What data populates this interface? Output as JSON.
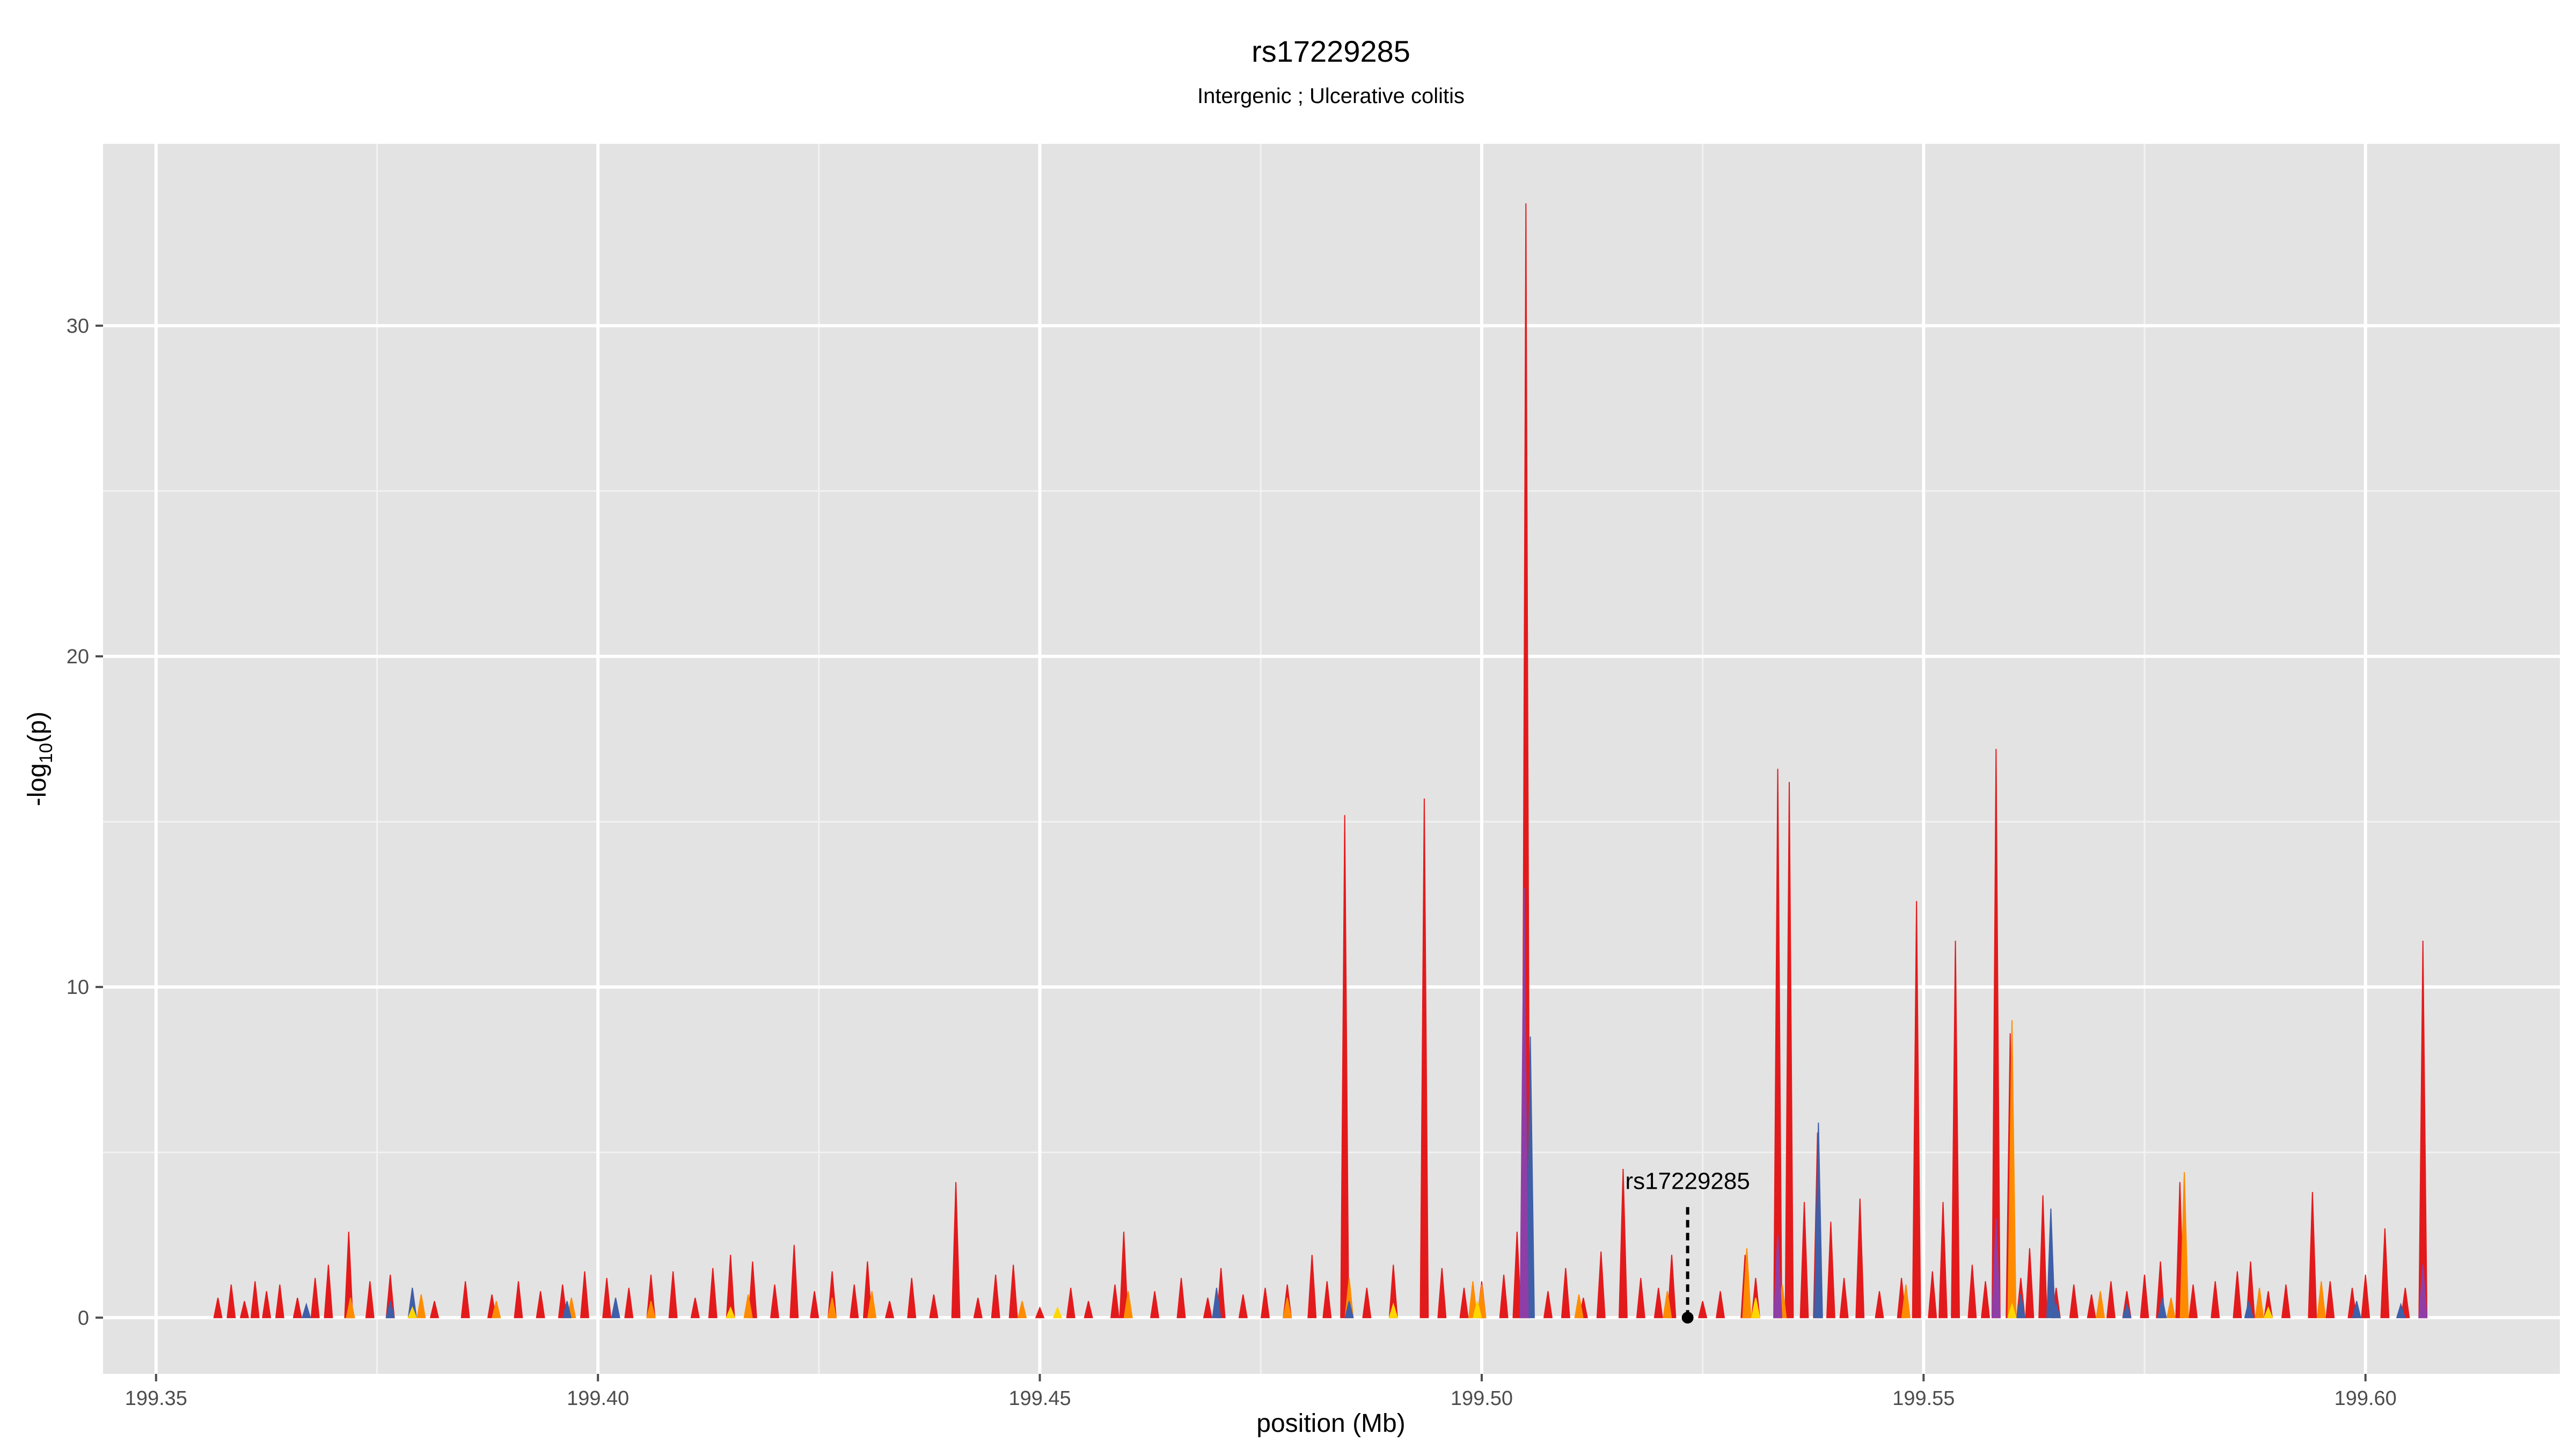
{
  "chart_data": {
    "type": "area",
    "title": "rs17229285",
    "subtitle": "Intergenic ; Ulcerative colitis",
    "xlabel": "position (Mb)",
    "ylabel": {
      "prefix": "-log",
      "sub": "10",
      "suffix": "(p)"
    },
    "xlim": [
      199.344,
      199.622
    ],
    "ylim": [
      -1.7,
      35.5
    ],
    "x_ticks": [
      199.35,
      199.4,
      199.45,
      199.5,
      199.55,
      199.6
    ],
    "x_tick_labels": [
      "199.35",
      "199.40",
      "199.45",
      "199.50",
      "199.55",
      "199.60"
    ],
    "y_ticks": [
      0,
      10,
      20,
      30
    ],
    "y_tick_labels": [
      "0",
      "10",
      "20",
      "30"
    ],
    "grid": true,
    "background": "#e3e3e3",
    "annotation": {
      "label": "rs17229285",
      "x": 199.5233,
      "y": 0
    },
    "series": [
      {
        "color": "#e31a1c",
        "points": [
          [
            199.357,
            0.6
          ],
          [
            199.3585,
            1.0
          ],
          [
            199.36,
            0.5
          ],
          [
            199.3612,
            1.1
          ],
          [
            199.3625,
            0.8
          ],
          [
            199.364,
            1.0
          ],
          [
            199.366,
            0.6
          ],
          [
            199.368,
            1.2
          ],
          [
            199.3695,
            1.6
          ],
          [
            199.3718,
            2.6
          ],
          [
            199.3742,
            1.1
          ],
          [
            199.3765,
            1.3
          ],
          [
            199.379,
            0.9
          ],
          [
            199.3815,
            0.5
          ],
          [
            199.385,
            1.1
          ],
          [
            199.388,
            0.7
          ],
          [
            199.391,
            1.1
          ],
          [
            199.3935,
            0.8
          ],
          [
            199.396,
            1.0
          ],
          [
            199.3985,
            1.4
          ],
          [
            199.401,
            1.2
          ],
          [
            199.4035,
            0.9
          ],
          [
            199.406,
            1.3
          ],
          [
            199.4085,
            1.4
          ],
          [
            199.411,
            0.6
          ],
          [
            199.413,
            1.5
          ],
          [
            199.415,
            1.9
          ],
          [
            199.4175,
            1.7
          ],
          [
            199.42,
            1.0
          ],
          [
            199.4222,
            2.2
          ],
          [
            199.4245,
            0.8
          ],
          [
            199.4265,
            1.4
          ],
          [
            199.429,
            1.0
          ],
          [
            199.4305,
            1.7
          ],
          [
            199.433,
            0.5
          ],
          [
            199.4355,
            1.2
          ],
          [
            199.438,
            0.7
          ],
          [
            199.4405,
            4.1
          ],
          [
            199.443,
            0.6
          ],
          [
            199.445,
            1.3
          ],
          [
            199.447,
            1.6
          ],
          [
            199.45,
            0.3
          ],
          [
            199.4535,
            0.9
          ],
          [
            199.4555,
            0.5
          ],
          [
            199.4585,
            1.0
          ],
          [
            199.4595,
            2.6
          ],
          [
            199.463,
            0.8
          ],
          [
            199.466,
            1.2
          ],
          [
            199.469,
            0.6
          ],
          [
            199.4705,
            1.5
          ],
          [
            199.473,
            0.7
          ],
          [
            199.4755,
            0.9
          ],
          [
            199.478,
            1.0
          ],
          [
            199.4808,
            1.9
          ],
          [
            199.4825,
            1.1
          ],
          [
            199.4845,
            15.2
          ],
          [
            199.487,
            0.9
          ],
          [
            199.49,
            1.6
          ],
          [
            199.4935,
            15.7
          ],
          [
            199.4955,
            1.5
          ],
          [
            199.498,
            0.9
          ],
          [
            199.5,
            1.1
          ],
          [
            199.5025,
            1.3
          ],
          [
            199.504,
            2.6
          ],
          [
            199.505,
            33.7
          ],
          [
            199.5075,
            0.8
          ],
          [
            199.5095,
            1.5
          ],
          [
            199.5115,
            0.6
          ],
          [
            199.5135,
            2.0
          ],
          [
            199.516,
            4.5
          ],
          [
            199.518,
            1.2
          ],
          [
            199.52,
            0.9
          ],
          [
            199.5215,
            1.9
          ],
          [
            199.525,
            0.5
          ],
          [
            199.527,
            0.8
          ],
          [
            199.5298,
            1.9
          ],
          [
            199.531,
            1.2
          ],
          [
            199.5335,
            16.6
          ],
          [
            199.5348,
            16.2
          ],
          [
            199.5365,
            3.5
          ],
          [
            199.538,
            5.6
          ],
          [
            199.5395,
            2.9
          ],
          [
            199.541,
            1.2
          ],
          [
            199.5428,
            3.6
          ],
          [
            199.545,
            0.8
          ],
          [
            199.5475,
            1.2
          ],
          [
            199.5492,
            12.6
          ],
          [
            199.551,
            1.4
          ],
          [
            199.5522,
            3.5
          ],
          [
            199.5536,
            11.4
          ],
          [
            199.5555,
            1.6
          ],
          [
            199.557,
            1.1
          ],
          [
            199.5582,
            17.2
          ],
          [
            199.5598,
            8.6
          ],
          [
            199.561,
            1.2
          ],
          [
            199.562,
            2.1
          ],
          [
            199.5635,
            3.7
          ],
          [
            199.565,
            0.9
          ],
          [
            199.567,
            1.0
          ],
          [
            199.569,
            0.7
          ],
          [
            199.5712,
            1.1
          ],
          [
            199.573,
            0.8
          ],
          [
            199.575,
            1.3
          ],
          [
            199.5768,
            1.7
          ],
          [
            199.579,
            4.1
          ],
          [
            199.5805,
            1.0
          ],
          [
            199.583,
            1.1
          ],
          [
            199.5855,
            1.4
          ],
          [
            199.587,
            1.7
          ],
          [
            199.589,
            0.8
          ],
          [
            199.591,
            1.0
          ],
          [
            199.594,
            3.8
          ],
          [
            199.596,
            1.1
          ],
          [
            199.5985,
            0.9
          ],
          [
            199.6,
            1.3
          ],
          [
            199.6022,
            2.7
          ],
          [
            199.6045,
            0.9
          ],
          [
            199.6065,
            11.4
          ]
        ]
      },
      {
        "color": "#ff8c00",
        "points": [
          [
            199.372,
            0.6
          ],
          [
            199.38,
            0.7
          ],
          [
            199.3885,
            0.5
          ],
          [
            199.397,
            0.6
          ],
          [
            199.406,
            0.5
          ],
          [
            199.417,
            0.7
          ],
          [
            199.4265,
            0.6
          ],
          [
            199.431,
            0.8
          ],
          [
            199.448,
            0.5
          ],
          [
            199.46,
            0.8
          ],
          [
            199.478,
            0.6
          ],
          [
            199.485,
            1.2
          ],
          [
            199.499,
            1.1
          ],
          [
            199.5,
            1.0
          ],
          [
            199.511,
            0.7
          ],
          [
            199.521,
            0.8
          ],
          [
            199.53,
            2.1
          ],
          [
            199.534,
            1.0
          ],
          [
            199.548,
            1.0
          ],
          [
            199.56,
            9.0
          ],
          [
            199.57,
            0.8
          ],
          [
            199.578,
            0.6
          ],
          [
            199.5795,
            4.4
          ],
          [
            199.588,
            0.9
          ],
          [
            199.595,
            1.1
          ]
        ]
      },
      {
        "color": "#3f5fa8",
        "points": [
          [
            199.367,
            0.4
          ],
          [
            199.3765,
            0.5
          ],
          [
            199.379,
            0.9
          ],
          [
            199.3965,
            0.5
          ],
          [
            199.402,
            0.6
          ],
          [
            199.47,
            0.9
          ],
          [
            199.485,
            0.5
          ],
          [
            199.5055,
            8.5
          ],
          [
            199.5381,
            5.9
          ],
          [
            199.561,
            0.7
          ],
          [
            199.5644,
            3.3
          ],
          [
            199.565,
            0.4
          ],
          [
            199.573,
            0.4
          ],
          [
            199.577,
            0.6
          ],
          [
            199.5868,
            0.5
          ],
          [
            199.599,
            0.5
          ],
          [
            199.604,
            0.4
          ]
        ]
      },
      {
        "color": "#ffd700",
        "points": [
          [
            199.379,
            0.3
          ],
          [
            199.415,
            0.3
          ],
          [
            199.452,
            0.3
          ],
          [
            199.49,
            0.4
          ],
          [
            199.4995,
            0.5
          ],
          [
            199.531,
            0.6
          ],
          [
            199.56,
            0.4
          ],
          [
            199.589,
            0.3
          ]
        ]
      },
      {
        "color": "#8e3ea6",
        "points": [
          [
            199.5048,
            13.0
          ],
          [
            199.5335,
            2.5
          ],
          [
            199.5582,
            3.0
          ],
          [
            199.6065,
            1.6
          ]
        ]
      }
    ]
  }
}
